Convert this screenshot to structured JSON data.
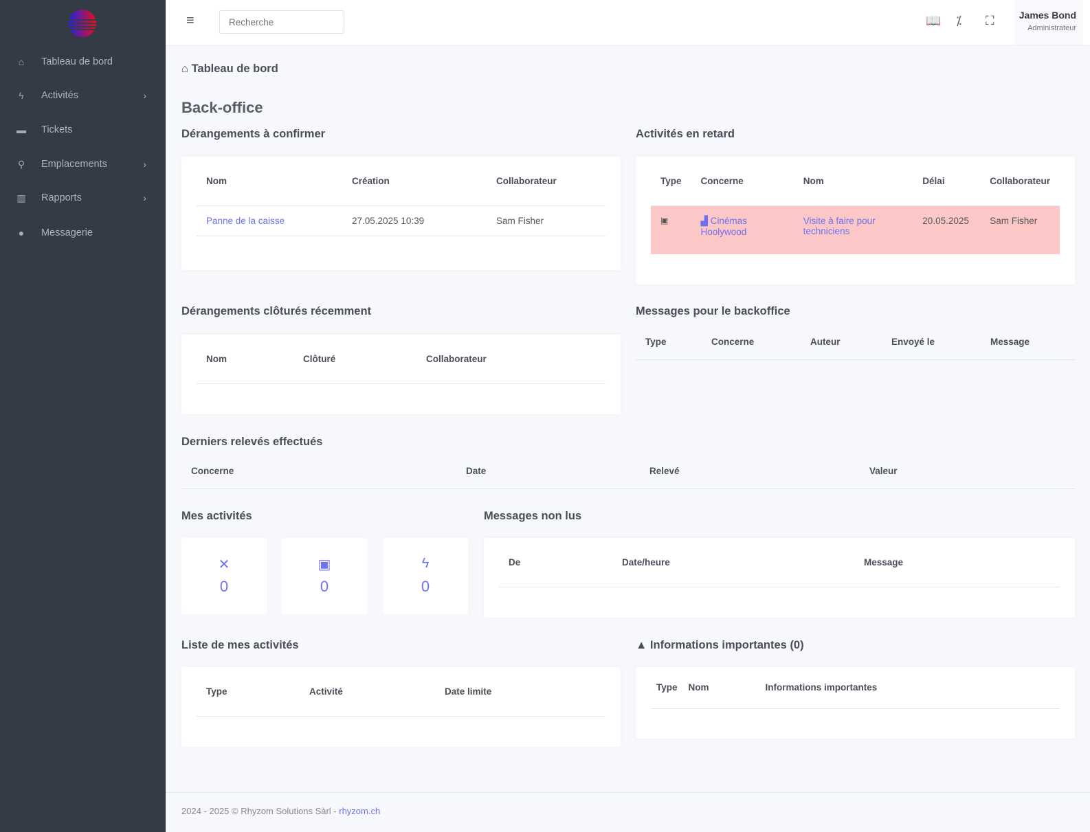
{
  "sidebar": {
    "items": [
      {
        "label": "Tableau de bord",
        "icon": "home-icon",
        "has_submenu": false
      },
      {
        "label": "Activités",
        "icon": "bolt-icon",
        "has_submenu": true
      },
      {
        "label": "Tickets",
        "icon": "ticket-icon",
        "has_submenu": false
      },
      {
        "label": "Emplacements",
        "icon": "location-icon",
        "has_submenu": true
      },
      {
        "label": "Rapports",
        "icon": "chart-bar-icon",
        "has_submenu": true
      },
      {
        "label": "Messagerie",
        "icon": "comment-icon",
        "has_submenu": false
      }
    ]
  },
  "header": {
    "search_placeholder": "Recherche",
    "user_name": "James Bond",
    "user_role": "Administrateur"
  },
  "breadcrumb": "Tableau de bord",
  "page_title": "Back-office",
  "derangements_confirmer": {
    "title": "Dérangements à confirmer",
    "headers": [
      "Nom",
      "Création",
      "Collaborateur"
    ],
    "rows": [
      {
        "nom": "Panne de la caisse",
        "creation": "27.05.2025 10:39",
        "collaborateur": "Sam Fisher"
      }
    ]
  },
  "activites_retard": {
    "title": "Activités en retard",
    "headers": [
      "Type",
      "Concerne",
      "Nom",
      "Délai",
      "Collaborateur"
    ],
    "rows": [
      {
        "type_icon": "calendar-clock-icon",
        "concerne": "Cinémas Hoolywood",
        "nom": "Visite à faire pour techniciens",
        "delai": "20.05.2025",
        "collaborateur": "Sam Fisher"
      }
    ]
  },
  "derangements_clotures": {
    "title": "Dérangements clôturés récemment",
    "headers": [
      "Nom",
      "Clôturé",
      "Collaborateur"
    ]
  },
  "messages_backoffice": {
    "title": "Messages pour le backoffice",
    "headers": [
      "Type",
      "Concerne",
      "Auteur",
      "Envoyé le",
      "Message"
    ]
  },
  "releves": {
    "title": "Derniers relevés effectués",
    "headers": [
      "Concerne",
      "Date",
      "Relevé",
      "Valeur"
    ]
  },
  "mes_activites": {
    "title": "Mes activités",
    "stats": [
      {
        "icon": "tools-icon",
        "value": "0"
      },
      {
        "icon": "calendar-clock-icon",
        "value": "0"
      },
      {
        "icon": "bolt-icon",
        "value": "0"
      }
    ]
  },
  "messages_non_lus": {
    "title": "Messages non lus",
    "headers": [
      "De",
      "Date/heure",
      "Message"
    ]
  },
  "liste_activites": {
    "title": "Liste de mes activités",
    "headers": [
      "Type",
      "Activité",
      "Date limite"
    ]
  },
  "infos": {
    "title": "Informations importantes (0)",
    "headers": [
      "Type",
      "Nom",
      "Informations importantes"
    ]
  },
  "footer": {
    "text": "2024 - 2025 © Rhyzom Solutions Sàrl - ",
    "link": "rhyzom.ch"
  },
  "colors": {
    "sidebar": "#343a46",
    "accent": "#6e6ff0",
    "late_row": "#fcc7c7"
  }
}
